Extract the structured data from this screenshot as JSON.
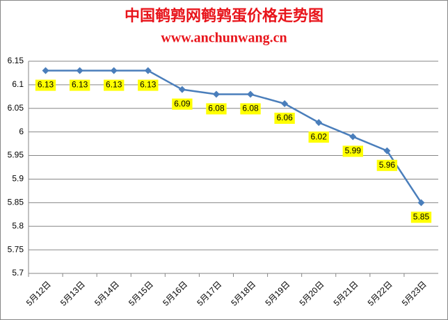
{
  "chart_data": {
    "type": "line",
    "title": "中国鹌鹑网鹌鹑蛋价格走势图",
    "subtitle": "www.anchunwang.cn",
    "categories": [
      "5月12日",
      "5月13日",
      "5月14日",
      "5月15日",
      "5月16日",
      "5月17日",
      "5月18日",
      "5月19日",
      "5月20日",
      "5月21日",
      "5月22日",
      "5月23日"
    ],
    "series": [
      {
        "color": "#4a7ebb",
        "values": [
          6.13,
          6.13,
          6.13,
          6.13,
          6.09,
          6.08,
          6.08,
          6.06,
          6.02,
          5.99,
          5.96,
          5.85
        ]
      }
    ],
    "ylim": [
      5.7,
      6.15
    ],
    "yticks": [
      5.7,
      5.75,
      5.8,
      5.85,
      5.9,
      5.95,
      6,
      6.05,
      6.1,
      6.15
    ],
    "grid": true
  }
}
